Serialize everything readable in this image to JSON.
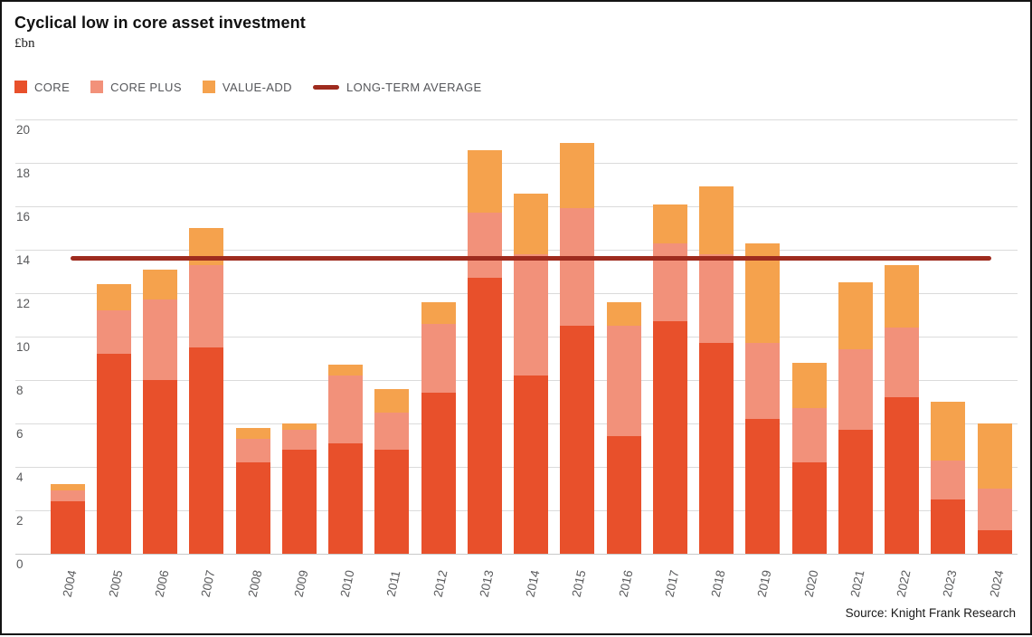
{
  "header": {
    "title": "Cyclical low in core asset investment",
    "unit_label": "£bn"
  },
  "footer": {
    "source": "Source: Knight Frank Research"
  },
  "colors": {
    "core": "#e8502b",
    "core_plus": "#f2917a",
    "value_add": "#f5a24d",
    "average_line": "#9e2b1e",
    "gridline": "#dbdbdb",
    "axis_text": "#58595b"
  },
  "chart_data": {
    "type": "bar",
    "stacked": true,
    "title": "Cyclical low in core asset investment",
    "ylabel": "£bn",
    "ylim": [
      0,
      20
    ],
    "ytick_step": 2,
    "grid": true,
    "legend_position": "top-left",
    "categories": [
      "2004",
      "2005",
      "2006",
      "2007",
      "2008",
      "2009",
      "2010",
      "2011",
      "2012",
      "2013",
      "2014",
      "2015",
      "2016",
      "2017",
      "2018",
      "2019",
      "2020",
      "2021",
      "2022",
      "2023",
      "2024"
    ],
    "series": [
      {
        "name": "CORE",
        "color": "#e8502b",
        "values": [
          2.4,
          9.2,
          8.0,
          9.5,
          4.2,
          4.8,
          5.1,
          4.8,
          7.4,
          12.7,
          8.2,
          10.5,
          5.4,
          10.7,
          9.7,
          6.2,
          4.2,
          5.7,
          7.2,
          2.5,
          1.1
        ]
      },
      {
        "name": "CORE PLUS",
        "color": "#f2917a",
        "values": [
          0.5,
          2.0,
          3.7,
          3.8,
          1.1,
          0.9,
          3.1,
          1.7,
          3.2,
          3.0,
          5.6,
          5.4,
          5.1,
          3.6,
          4.1,
          3.5,
          2.5,
          3.7,
          3.2,
          1.8,
          1.9
        ]
      },
      {
        "name": "VALUE-ADD",
        "color": "#f5a24d",
        "values": [
          0.3,
          1.2,
          1.4,
          1.7,
          0.5,
          0.3,
          0.5,
          1.1,
          1.0,
          2.9,
          2.8,
          3.0,
          1.1,
          1.8,
          3.1,
          4.6,
          2.1,
          3.1,
          2.9,
          2.7,
          3.0
        ]
      }
    ],
    "average_line": {
      "label": "LONG-TERM AVERAGE",
      "value": 13.6,
      "color": "#9e2b1e"
    }
  }
}
